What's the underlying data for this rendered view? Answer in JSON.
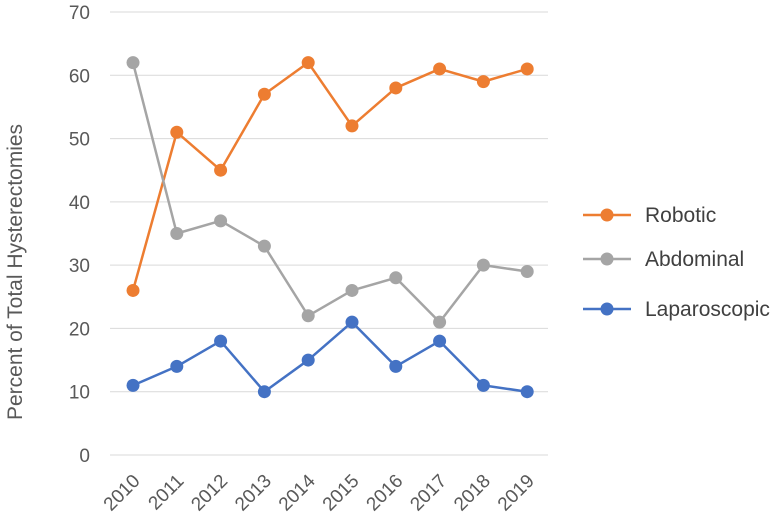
{
  "chart_data": {
    "type": "line",
    "title": "",
    "xlabel": "",
    "ylabel": "Percent of Total  Hysterectomies",
    "x": [
      "2010",
      "2011",
      "2012",
      "2013",
      "2014",
      "2015",
      "2016",
      "2017",
      "2018",
      "2019"
    ],
    "ylim": [
      0,
      70
    ],
    "yticks": [
      "0",
      "10",
      "20",
      "30",
      "40",
      "50",
      "60",
      "70"
    ],
    "grid": true,
    "legend_position": "right",
    "series": [
      {
        "name": "Robotic",
        "color": "#ED7D31",
        "values": [
          26,
          51,
          45,
          57,
          62,
          52,
          58,
          61,
          59,
          61
        ]
      },
      {
        "name": "Abdominal",
        "color": "#A5A5A5",
        "values": [
          62,
          35,
          37,
          33,
          22,
          26,
          28,
          21,
          30,
          29
        ]
      },
      {
        "name": "Laparoscopic",
        "color": "#4472C4",
        "values": [
          11,
          14,
          18,
          10,
          15,
          21,
          14,
          18,
          11,
          10
        ]
      }
    ]
  }
}
